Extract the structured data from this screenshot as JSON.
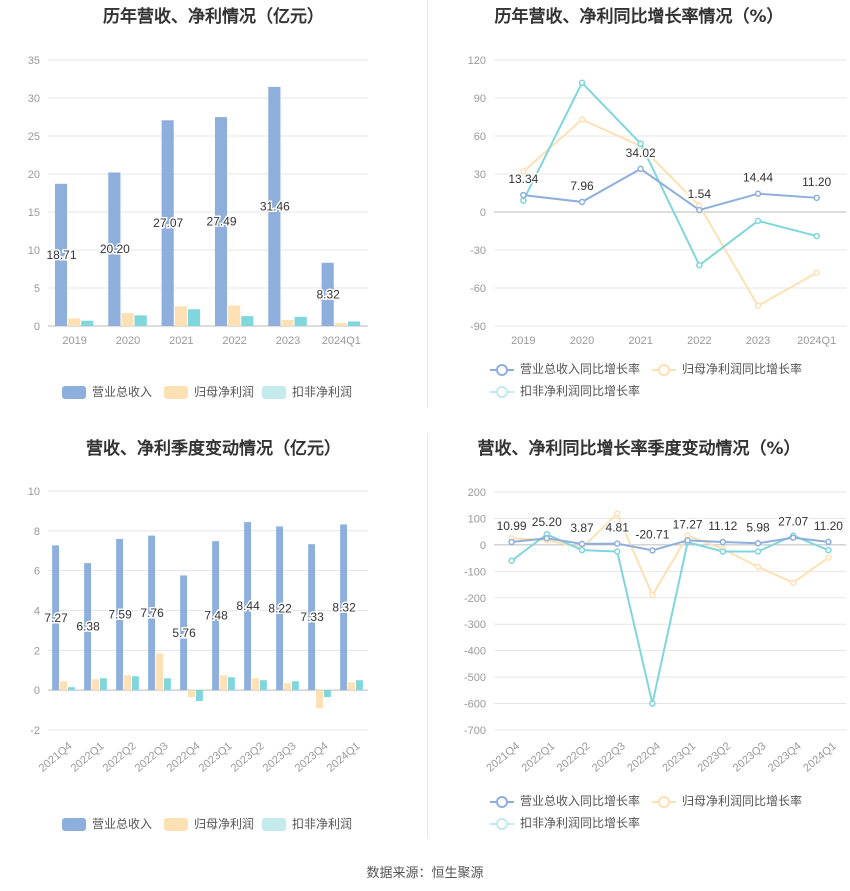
{
  "source_note": "数据来源：恒生聚源",
  "colors": {
    "revenue": "#8eaedc",
    "net": "#fde1b4",
    "deducted": "#7fd6dc",
    "axis_text": "#999999",
    "grid": "#e5e5e5",
    "label": "#333333"
  },
  "chart_data": [
    {
      "type": "bar",
      "title": "历年营收、净利情况（亿元）",
      "categories": [
        "2019",
        "2020",
        "2021",
        "2022",
        "2023",
        "2024Q1"
      ],
      "series": [
        {
          "name": "营业总收入",
          "values": [
            18.71,
            20.2,
            27.07,
            27.49,
            31.46,
            8.32
          ],
          "labels": [
            "18.71",
            "20.20",
            "27.07",
            "27.49",
            "31.46",
            "8.32"
          ]
        },
        {
          "name": "归母净利润",
          "values": [
            1.0,
            1.7,
            2.6,
            2.7,
            0.8,
            0.4
          ]
        },
        {
          "name": "扣非净利润",
          "values": [
            0.7,
            1.4,
            2.2,
            1.3,
            1.2,
            0.6
          ]
        }
      ],
      "yticks": [
        "35",
        "30",
        "25",
        "20",
        "15",
        "10",
        "5",
        "0"
      ],
      "ylim": [
        0,
        35
      ]
    },
    {
      "type": "line",
      "title": "历年营收、净利同比增长率情况（%）",
      "categories": [
        "2019",
        "2020",
        "2021",
        "2022",
        "2023",
        "2024Q1"
      ],
      "series": [
        {
          "name": "营业总收入同比增长率",
          "values": [
            13.34,
            7.96,
            34.02,
            1.54,
            14.44,
            11.2
          ],
          "labels": [
            "13.34",
            "7.96",
            "34.02",
            "1.54",
            "14.44",
            "11.20"
          ]
        },
        {
          "name": "归母净利润同比增长率",
          "values": [
            32,
            73,
            52,
            5,
            -74,
            -48
          ]
        },
        {
          "name": "扣非净利润同比增长率",
          "values": [
            9,
            102,
            54,
            -42,
            -7,
            -19
          ]
        }
      ],
      "yticks": [
        "120",
        "90",
        "60",
        "30",
        "0",
        "-30",
        "-60",
        "-90"
      ],
      "ylim": [
        -90,
        120
      ]
    },
    {
      "type": "bar",
      "title": "营收、净利季度变动情况（亿元）",
      "categories": [
        "2021Q4",
        "2022Q1",
        "2022Q2",
        "2022Q3",
        "2022Q4",
        "2023Q1",
        "2023Q2",
        "2023Q3",
        "2023Q4",
        "2024Q1"
      ],
      "series": [
        {
          "name": "营业总收入",
          "values": [
            7.27,
            6.38,
            7.59,
            7.76,
            5.76,
            7.48,
            8.44,
            8.22,
            7.33,
            8.32
          ],
          "labels": [
            "7.27",
            "6.38",
            "7.59",
            "7.76",
            "5.76",
            "7.48",
            "8.44",
            "8.22",
            "7.33",
            "8.32"
          ]
        },
        {
          "name": "归母净利润",
          "values": [
            0.45,
            0.55,
            0.75,
            1.85,
            -0.35,
            0.75,
            0.6,
            0.35,
            -0.9,
            0.4
          ]
        },
        {
          "name": "扣非净利润",
          "values": [
            0.15,
            0.6,
            0.7,
            0.6,
            -0.55,
            0.65,
            0.5,
            0.45,
            -0.35,
            0.5
          ]
        }
      ],
      "yticks": [
        "10",
        "8",
        "6",
        "4",
        "2",
        "0",
        "-2"
      ],
      "ylim": [
        -2,
        10
      ]
    },
    {
      "type": "line",
      "title": "营收、净利同比增长率季度变动情况（%）",
      "categories": [
        "2021Q4",
        "2022Q1",
        "2022Q2",
        "2022Q3",
        "2022Q4",
        "2023Q1",
        "2023Q2",
        "2023Q3",
        "2023Q4",
        "2024Q1"
      ],
      "series": [
        {
          "name": "营业总收入同比增长率",
          "values": [
            10.99,
            25.2,
            3.87,
            4.81,
            -20.71,
            17.27,
            11.12,
            5.98,
            27.07,
            11.2
          ],
          "labels": [
            "10.99",
            "25.20",
            "3.87",
            "4.81",
            "-20.71",
            "17.27",
            "11.12",
            "5.98",
            "27.07",
            "11.20"
          ]
        },
        {
          "name": "归母净利润同比增长率",
          "values": [
            25,
            18,
            -12,
            118,
            -190,
            35,
            -15,
            -83,
            -143,
            -48
          ]
        },
        {
          "name": "扣非净利润同比增长率",
          "values": [
            -60,
            40,
            -20,
            -25,
            -600,
            10,
            -25,
            -25,
            35,
            -20
          ]
        }
      ],
      "yticks": [
        "200",
        "100",
        "0",
        "-100",
        "-200",
        "-300",
        "-400",
        "-500",
        "-600",
        "-700"
      ],
      "ylim": [
        -700,
        200
      ]
    }
  ]
}
